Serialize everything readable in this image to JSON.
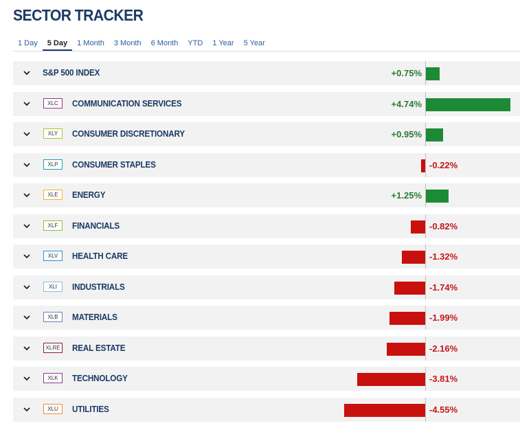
{
  "title": "SECTOR TRACKER",
  "tabs": [
    "1 Day",
    "5 Day",
    "1 Month",
    "3 Month",
    "6 Month",
    "YTD",
    "1 Year",
    "5 Year"
  ],
  "active_tab": "5 Day",
  "colors": {
    "positive": "#1d8a36",
    "negative": "#c8100f",
    "title": "#1b3a66"
  },
  "rows": [
    {
      "ticker": "",
      "name": "S&P 500 INDEX",
      "value": 0.75,
      "change": "+0.75%",
      "badge_color": ""
    },
    {
      "ticker": "XLC",
      "name": "COMMUNICATION SERVICES",
      "value": 4.74,
      "change": "+4.74%",
      "badge_color": "#a0308a"
    },
    {
      "ticker": "XLY",
      "name": "CONSUMER DISCRETIONARY",
      "value": 0.95,
      "change": "+0.95%",
      "badge_color": "#b5c232"
    },
    {
      "ticker": "XLP",
      "name": "CONSUMER STAPLES",
      "value": -0.22,
      "change": "-0.22%",
      "badge_color": "#1a9fb5"
    },
    {
      "ticker": "XLE",
      "name": "ENERGY",
      "value": 1.25,
      "change": "+1.25%",
      "badge_color": "#f0b429"
    },
    {
      "ticker": "XLF",
      "name": "FINANCIALS",
      "value": -0.82,
      "change": "-0.82%",
      "badge_color": "#8bbf3a"
    },
    {
      "ticker": "XLV",
      "name": "HEALTH CARE",
      "value": -1.32,
      "change": "-1.32%",
      "badge_color": "#2c8fd1"
    },
    {
      "ticker": "XLI",
      "name": "INDUSTRIALS",
      "value": -1.74,
      "change": "-1.74%",
      "badge_color": "#7fbfe3"
    },
    {
      "ticker": "XLB",
      "name": "MATERIALS",
      "value": -1.99,
      "change": "-1.99%",
      "badge_color": "#6b7fc0"
    },
    {
      "ticker": "XLRE",
      "name": "REAL ESTATE",
      "value": -2.16,
      "change": "-2.16%",
      "badge_color": "#8a1c2c"
    },
    {
      "ticker": "XLK",
      "name": "TECHNOLOGY",
      "value": -3.81,
      "change": "-3.81%",
      "badge_color": "#8a3d8f"
    },
    {
      "ticker": "XLU",
      "name": "UTILITIES",
      "value": -4.55,
      "change": "-4.55%",
      "badge_color": "#f28c28"
    }
  ]
}
